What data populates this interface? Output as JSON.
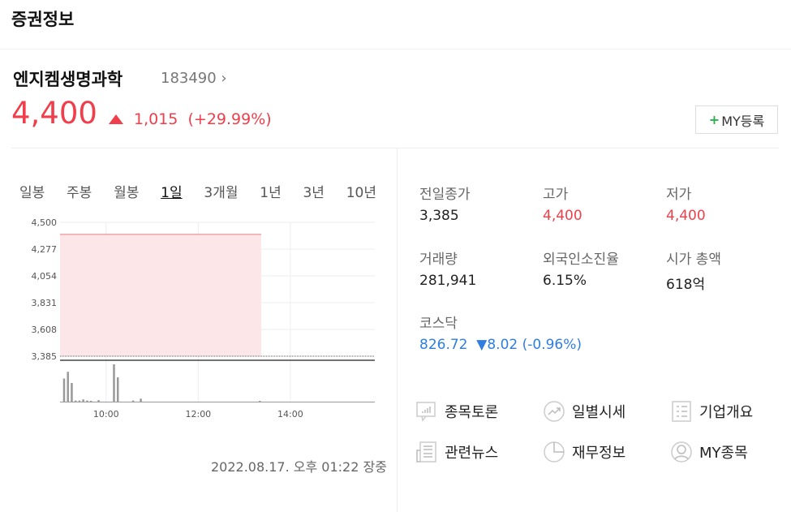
{
  "header": {
    "title": "증권정보"
  },
  "stock": {
    "name": "엔지켐생명과학",
    "code": "183490 ›",
    "price": "4,400",
    "change": "1,015",
    "change_pct": "(+29.99%)",
    "direction": "up",
    "my_button": "MY등록"
  },
  "colors": {
    "up": "#f03e4b",
    "down": "#2f7de1",
    "fill": "#fde6e8"
  },
  "tabs": [
    {
      "label": "일봉"
    },
    {
      "label": "주봉"
    },
    {
      "label": "월봉"
    },
    {
      "label": "1일",
      "active": true
    },
    {
      "label": "3개월"
    },
    {
      "label": "1년"
    },
    {
      "label": "3년"
    },
    {
      "label": "10년"
    }
  ],
  "chart_data": {
    "type": "area",
    "y_ticks": [
      "4,500",
      "4,277",
      "4,054",
      "3,831",
      "3,608",
      "3,385"
    ],
    "ylim": [
      3385,
      4500
    ],
    "x_ticks": [
      "10:00",
      "12:00",
      "14:00"
    ],
    "xlim": [
      "09:00",
      "15:50"
    ],
    "previous_close": 3385,
    "price_series": [
      {
        "time": "09:00",
        "value": 4400
      },
      {
        "time": "13:22",
        "value": 4400
      }
    ],
    "volume_series_relative": [
      {
        "time": "09:05",
        "value": 62
      },
      {
        "time": "09:10",
        "value": 80
      },
      {
        "time": "09:15",
        "value": 50
      },
      {
        "time": "09:20",
        "value": 3
      },
      {
        "time": "09:25",
        "value": 3
      },
      {
        "time": "09:30",
        "value": 6
      },
      {
        "time": "09:35",
        "value": 3
      },
      {
        "time": "09:40",
        "value": 2
      },
      {
        "time": "09:50",
        "value": 4
      },
      {
        "time": "10:10",
        "value": 100
      },
      {
        "time": "10:15",
        "value": 65
      },
      {
        "time": "10:35",
        "value": 3
      },
      {
        "time": "10:45",
        "value": 8
      },
      {
        "time": "13:20",
        "value": 1
      }
    ],
    "grid": true
  },
  "timestamp": "2022.08.17. 오후 01:22 장중",
  "stats": [
    {
      "label": "전일종가",
      "value": "3,385",
      "tone": ""
    },
    {
      "label": "고가",
      "value": "4,400",
      "tone": "red"
    },
    {
      "label": "저가",
      "value": "4,400",
      "tone": "red"
    },
    {
      "label": "거래량",
      "value": "281,941",
      "tone": ""
    },
    {
      "label": "외국인소진율",
      "value": "6.15%",
      "tone": ""
    },
    {
      "label": "시가 총액",
      "value": "618억",
      "tone": ""
    }
  ],
  "index": {
    "label": "코스닥",
    "value": "826.72",
    "change": "▼8.02 (-0.96%)"
  },
  "links": [
    {
      "label": "종목토론",
      "icon": "chat-chart-icon"
    },
    {
      "label": "일별시세",
      "icon": "trend-icon"
    },
    {
      "label": "기업개요",
      "icon": "list-doc-icon"
    },
    {
      "label": "관련뉴스",
      "icon": "newspaper-icon"
    },
    {
      "label": "재무정보",
      "icon": "pie-chart-icon"
    },
    {
      "label": "MY종목",
      "icon": "user-icon"
    }
  ]
}
